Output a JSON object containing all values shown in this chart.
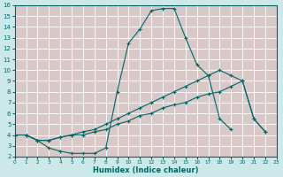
{
  "bg_color": "#cde8e8",
  "plot_bg_color": "#d8c8c8",
  "line_color": "#006666",
  "grid_color": "#ffffff",
  "xlabel": "Humidex (Indice chaleur)",
  "xlim": [
    0,
    23
  ],
  "ylim": [
    2,
    16
  ],
  "xticks": [
    0,
    1,
    2,
    3,
    4,
    5,
    6,
    7,
    8,
    9,
    10,
    11,
    12,
    13,
    14,
    15,
    16,
    17,
    18,
    19,
    20,
    21,
    22,
    23
  ],
  "yticks": [
    2,
    3,
    4,
    5,
    6,
    7,
    8,
    9,
    10,
    11,
    12,
    13,
    14,
    15,
    16
  ],
  "x": [
    0,
    1,
    2,
    3,
    4,
    5,
    6,
    7,
    8,
    9,
    10,
    11,
    12,
    13,
    14,
    15,
    16,
    17,
    18,
    19,
    20,
    21,
    22
  ],
  "line1": [
    4.0,
    4.0,
    3.5,
    2.8,
    2.5,
    2.3,
    2.3,
    2.3,
    2.8,
    8.0,
    12.5,
    13.8,
    15.5,
    15.7,
    15.7,
    13.0,
    10.5,
    9.5,
    5.5,
    4.5,
    null,
    null,
    null
  ],
  "line2": [
    4.0,
    4.0,
    3.5,
    3.5,
    3.8,
    4.0,
    4.3,
    4.5,
    5.0,
    5.5,
    6.0,
    6.5,
    7.0,
    7.5,
    8.0,
    8.5,
    9.0,
    9.5,
    10.0,
    9.5,
    9.0,
    5.5,
    4.3
  ],
  "line3": [
    4.0,
    4.0,
    3.5,
    3.5,
    3.8,
    4.0,
    4.0,
    4.3,
    4.5,
    5.0,
    5.3,
    5.8,
    6.0,
    6.5,
    6.8,
    7.0,
    7.5,
    7.8,
    8.0,
    8.5,
    9.0,
    5.5,
    4.3
  ]
}
